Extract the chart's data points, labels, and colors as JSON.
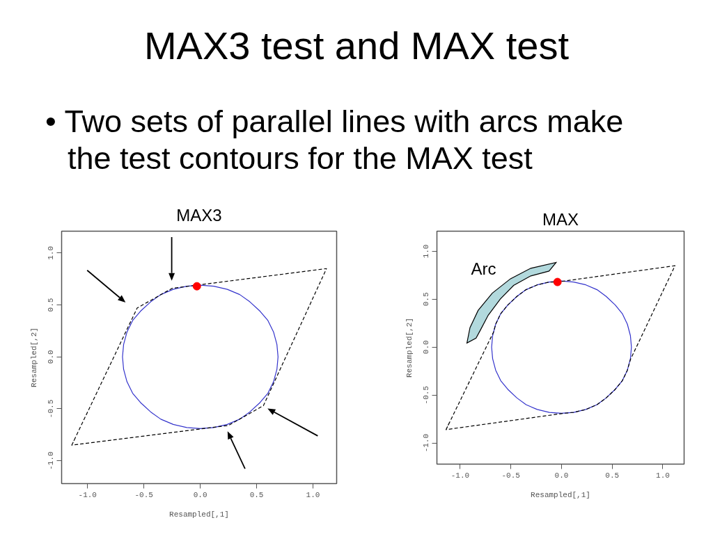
{
  "chart_data": [
    {
      "type": "other",
      "title": "MAX3 test and MAX test",
      "annotations": [
        "• Two sets of parallel lines with arcs make the test contours for the MAX test"
      ]
    },
    {
      "type": "line",
      "title": "MAX3",
      "xlabel": "Resampled[,1]",
      "ylabel": "Resampled[,2]",
      "xlim": [
        -1.23,
        1.21
      ],
      "ylim": [
        -1.22,
        1.21
      ],
      "xticks": [
        {
          "value": -1,
          "label": "-1.0"
        },
        {
          "value": -0.5,
          "label": "-0.5"
        },
        {
          "value": 0,
          "label": "0.0"
        },
        {
          "value": 0.5,
          "label": "0.5"
        },
        {
          "value": 1,
          "label": "1.0"
        }
      ],
      "yticks": [
        {
          "value": -1,
          "label": "-1.0"
        },
        {
          "value": -0.5,
          "label": "-0.5"
        },
        {
          "value": 0,
          "label": "0.0"
        },
        {
          "value": 0.5,
          "label": "0.5"
        },
        {
          "value": 1,
          "label": "1.0"
        }
      ],
      "series": [
        {
          "type": "line",
          "color": "#3333cc",
          "line_style": "solid",
          "x": [
            0.69,
            0.68,
            0.65,
            0.6,
            0.53,
            0.44,
            0.35,
            0.24,
            0.12,
            0,
            -0.12,
            -0.24,
            -0.35,
            -0.44,
            -0.53,
            -0.6,
            -0.65,
            -0.68,
            -0.69,
            -0.68,
            -0.65,
            -0.6,
            -0.53,
            -0.44,
            -0.35,
            -0.24,
            -0.12,
            0,
            0.12,
            0.24,
            0.35,
            0.44,
            0.53,
            0.6,
            0.65,
            0.68,
            0.69,
            0.68
          ],
          "values": [
            0,
            0.12,
            0.24,
            0.35,
            0.44,
            0.53,
            0.6,
            0.65,
            0.68,
            0.69,
            0.68,
            0.65,
            0.6,
            0.53,
            0.44,
            0.35,
            0.24,
            0.12,
            0,
            -0.12,
            -0.24,
            -0.35,
            -0.44,
            -0.53,
            -0.6,
            -0.65,
            -0.68,
            -0.69,
            -0.68,
            -0.65,
            -0.6,
            -0.53,
            -0.44,
            -0.35,
            -0.24,
            -0.12,
            0,
            0.12
          ]
        },
        {
          "type": "line",
          "color": "#000000",
          "line_style": "dashed",
          "x": [
            -1.14,
            -0.56,
            -0.25,
            1.12,
            0.56,
            0.25,
            -1.14,
            -1.1
          ],
          "values": [
            -0.85,
            0.47,
            0.66,
            0.85,
            -0.47,
            -0.66,
            -0.85,
            -0.76
          ]
        },
        {
          "type": "scatter",
          "color": "#ff0000",
          "marker": "circle",
          "x": [
            -0.03
          ],
          "values": [
            0.68
          ]
        }
      ]
    },
    {
      "type": "line",
      "title": "MAX",
      "xlabel": "Resampled[,1]",
      "ylabel": "Resampled[,2]",
      "xlim": [
        -1.23,
        1.21
      ],
      "ylim": [
        -1.22,
        1.21
      ],
      "xticks": [
        {
          "value": -1,
          "label": "-1.0"
        },
        {
          "value": -0.5,
          "label": "-0.5"
        },
        {
          "value": 0,
          "label": "0.0"
        },
        {
          "value": 0.5,
          "label": "0.5"
        },
        {
          "value": 1,
          "label": "1.0"
        }
      ],
      "yticks": [
        {
          "value": -1,
          "label": "-1.0"
        },
        {
          "value": -0.5,
          "label": "-0.5"
        },
        {
          "value": 0,
          "label": "0.0"
        },
        {
          "value": 0.5,
          "label": "0.5"
        },
        {
          "value": 1,
          "label": "1.0"
        }
      ],
      "annotations": [
        "Arc"
      ],
      "series": [
        {
          "type": "line",
          "color": "#3333cc",
          "line_style": "solid",
          "x": [
            0.69,
            0.68,
            0.65,
            0.6,
            0.53,
            0.44,
            0.35,
            0.24,
            0.12,
            0,
            -0.12,
            -0.24,
            -0.35,
            -0.44,
            -0.53,
            -0.6,
            -0.65,
            -0.68,
            -0.69,
            -0.68,
            -0.65,
            -0.6,
            -0.53,
            -0.44,
            -0.35,
            -0.24,
            -0.12,
            0,
            0.12,
            0.24,
            0.35,
            0.44,
            0.53,
            0.6,
            0.65,
            0.68,
            0.69,
            0.68
          ],
          "values": [
            0,
            0.12,
            0.24,
            0.35,
            0.44,
            0.53,
            0.6,
            0.65,
            0.68,
            0.69,
            0.68,
            0.65,
            0.6,
            0.53,
            0.44,
            0.35,
            0.24,
            0.12,
            0,
            -0.12,
            -0.24,
            -0.35,
            -0.44,
            -0.53,
            -0.6,
            -0.65,
            -0.68,
            -0.69,
            -0.68,
            -0.65,
            -0.6,
            -0.53,
            -0.44,
            -0.35,
            -0.24,
            -0.12,
            0,
            0.12
          ]
        },
        {
          "type": "line",
          "color": "#000000",
          "line_style": "dashed",
          "x": [
            -1.14,
            -0.67,
            -0.65,
            -0.6,
            -0.53,
            -0.44,
            -0.35,
            -0.24,
            -0.12,
            -0.04,
            1.12,
            0.68,
            0.65,
            0.6,
            0.53,
            0.44,
            0.35,
            0.24,
            0.12,
            0.02,
            -1.14,
            -1.1
          ],
          "values": [
            -0.86,
            0.16,
            0.24,
            0.35,
            0.44,
            0.53,
            0.6,
            0.65,
            0.68,
            0.68,
            0.85,
            -0.13,
            -0.24,
            -0.35,
            -0.44,
            -0.53,
            -0.6,
            -0.65,
            -0.68,
            -0.69,
            -0.86,
            -0.77
          ]
        },
        {
          "type": "scatter",
          "color": "#ff0000",
          "marker": "circle",
          "x": [
            -0.04
          ],
          "values": [
            0.68
          ]
        }
      ]
    }
  ]
}
